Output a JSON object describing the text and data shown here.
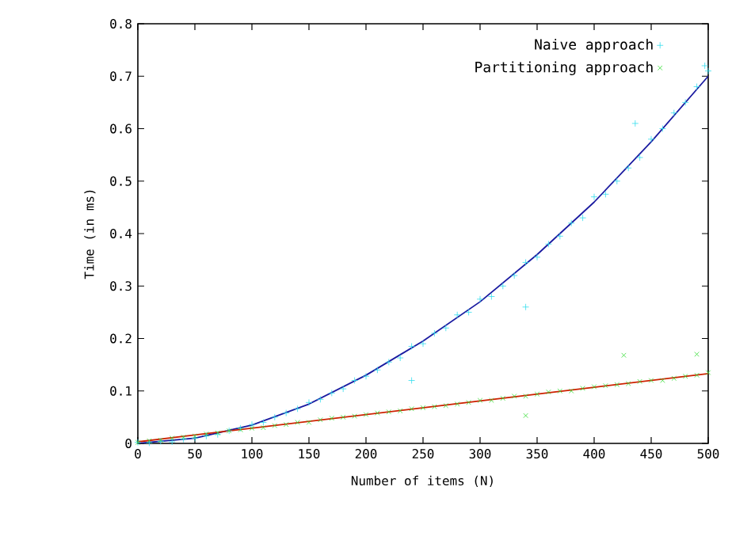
{
  "chart_data": {
    "type": "scatter",
    "xlabel": "Number of items (N)",
    "ylabel": "Time (in ms)",
    "xlim": [
      0,
      500
    ],
    "ylim": [
      0,
      0.8
    ],
    "xticks": [
      0,
      50,
      100,
      150,
      200,
      250,
      300,
      350,
      400,
      450,
      500
    ],
    "yticks": [
      0,
      0.1,
      0.2,
      0.3,
      0.4,
      0.5,
      0.6,
      0.7,
      0.8
    ],
    "grid": false,
    "legend": "top right",
    "series": [
      {
        "name": "Naive approach",
        "marker": "plus",
        "color": "#33ddee",
        "x": [
          0,
          10,
          20,
          30,
          40,
          50,
          60,
          70,
          80,
          90,
          100,
          110,
          120,
          130,
          140,
          150,
          160,
          170,
          180,
          190,
          200,
          210,
          220,
          230,
          240,
          250,
          260,
          270,
          280,
          290,
          300,
          310,
          320,
          330,
          340,
          350,
          360,
          370,
          380,
          390,
          400,
          410,
          420,
          430,
          440,
          450,
          460,
          470,
          480,
          490,
          500,
          436,
          340,
          240,
          497
        ],
        "values": [
          0.002,
          0.001,
          0.004,
          0.003,
          0.008,
          0.01,
          0.014,
          0.017,
          0.024,
          0.029,
          0.036,
          0.04,
          0.05,
          0.058,
          0.066,
          0.078,
          0.084,
          0.096,
          0.104,
          0.12,
          0.128,
          0.14,
          0.155,
          0.163,
          0.185,
          0.19,
          0.21,
          0.22,
          0.245,
          0.25,
          0.275,
          0.28,
          0.3,
          0.32,
          0.345,
          0.355,
          0.38,
          0.395,
          0.42,
          0.43,
          0.47,
          0.475,
          0.5,
          0.525,
          0.545,
          0.58,
          0.6,
          0.63,
          0.65,
          0.68,
          0.71,
          0.61,
          0.26,
          0.12,
          0.72
        ]
      },
      {
        "name": "Partitioning approach",
        "marker": "cross",
        "color": "#33dd33",
        "x": [
          0,
          10,
          20,
          30,
          40,
          50,
          60,
          70,
          80,
          90,
          100,
          110,
          120,
          130,
          140,
          150,
          160,
          170,
          180,
          190,
          200,
          210,
          220,
          230,
          240,
          250,
          260,
          270,
          280,
          290,
          300,
          310,
          320,
          330,
          340,
          350,
          360,
          370,
          380,
          390,
          400,
          410,
          420,
          430,
          440,
          450,
          460,
          470,
          480,
          490,
          500,
          426,
          490,
          340
        ],
        "values": [
          0.002,
          0.005,
          0.006,
          0.01,
          0.012,
          0.014,
          0.018,
          0.02,
          0.024,
          0.026,
          0.029,
          0.03,
          0.034,
          0.036,
          0.04,
          0.04,
          0.045,
          0.048,
          0.05,
          0.052,
          0.055,
          0.058,
          0.06,
          0.062,
          0.066,
          0.068,
          0.07,
          0.072,
          0.075,
          0.078,
          0.082,
          0.082,
          0.086,
          0.09,
          0.09,
          0.094,
          0.098,
          0.1,
          0.1,
          0.105,
          0.108,
          0.11,
          0.112,
          0.114,
          0.118,
          0.12,
          0.12,
          0.124,
          0.128,
          0.13,
          0.135,
          0.168,
          0.17,
          0.053
        ]
      },
      {
        "type": "line",
        "marker": "none",
        "color": "#1a1aa0",
        "x": [
          0,
          50,
          100,
          150,
          200,
          250,
          300,
          350,
          400,
          450,
          500
        ],
        "values": [
          0.0,
          0.01,
          0.035,
          0.075,
          0.13,
          0.195,
          0.27,
          0.36,
          0.46,
          0.575,
          0.7
        ]
      },
      {
        "type": "line",
        "marker": "none",
        "color": "#cc2200",
        "x": [
          0,
          100,
          200,
          300,
          400,
          500
        ],
        "values": [
          0.003,
          0.029,
          0.055,
          0.081,
          0.107,
          0.133
        ]
      }
    ]
  }
}
